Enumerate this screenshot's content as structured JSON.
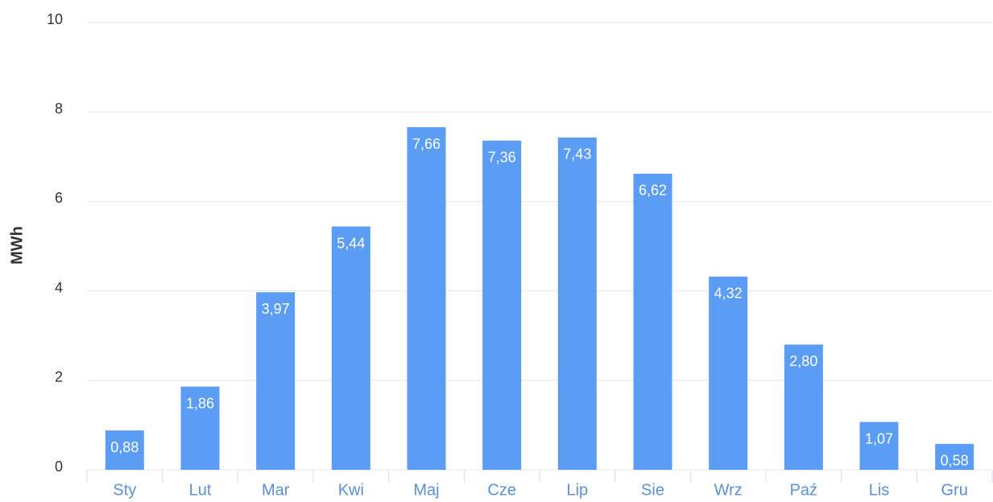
{
  "chart_data": {
    "type": "bar",
    "ylabel": "MWh",
    "categories": [
      "Sty",
      "Lut",
      "Mar",
      "Kwi",
      "Maj",
      "Cze",
      "Lip",
      "Sie",
      "Wrz",
      "Paź",
      "Lis",
      "Gru"
    ],
    "values": [
      0.88,
      1.86,
      3.97,
      5.44,
      7.66,
      7.36,
      7.43,
      6.62,
      4.32,
      2.8,
      1.07,
      0.58
    ],
    "value_labels": [
      "0,88",
      "1,86",
      "3,97",
      "5,44",
      "7,66",
      "7,36",
      "7,43",
      "6,62",
      "4,32",
      "2,80",
      "1,07",
      "0,58"
    ],
    "color": "#5b9cf4",
    "ylim": [
      0,
      10
    ],
    "yticks": [
      0,
      2,
      4,
      6,
      8,
      10
    ],
    "grid": true
  }
}
